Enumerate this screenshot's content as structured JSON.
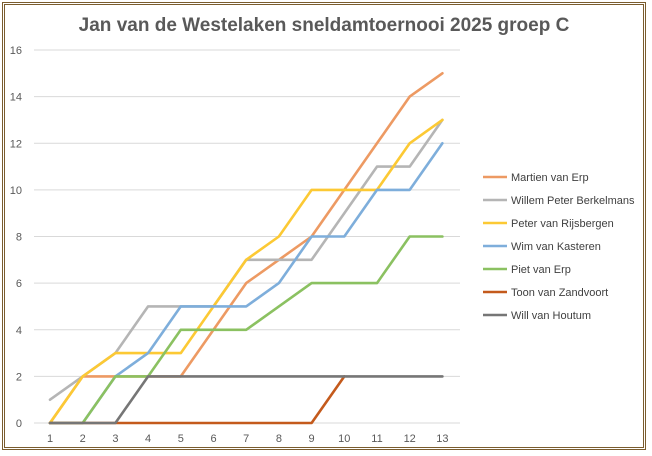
{
  "chart_data": {
    "type": "line",
    "title": "Jan van de Westelaken sneldamtoernooi 2025 groep C",
    "xlabel": "",
    "ylabel": "",
    "x": [
      1,
      2,
      3,
      4,
      5,
      6,
      7,
      8,
      9,
      10,
      11,
      12,
      13
    ],
    "ylim": [
      0,
      16
    ],
    "yticks": [
      0,
      2,
      4,
      6,
      8,
      10,
      12,
      14,
      16
    ],
    "grid": true,
    "legend_position": "right",
    "series": [
      {
        "name": "Martien van Erp",
        "color": "#ed9a63",
        "values": [
          0,
          2,
          2,
          2,
          2,
          4,
          6,
          7,
          8,
          10,
          12,
          14,
          15
        ]
      },
      {
        "name": "Willem Peter Berkelmans",
        "color": "#b5b5b5",
        "values": [
          1,
          2,
          3,
          5,
          5,
          5,
          7,
          7,
          7,
          9,
          11,
          11,
          13
        ]
      },
      {
        "name": "Peter van Rijsbergen",
        "color": "#fcc934",
        "values": [
          0,
          2,
          3,
          3,
          3,
          5,
          7,
          8,
          10,
          10,
          10,
          12,
          13
        ]
      },
      {
        "name": "Wim van Kasteren",
        "color": "#7eaedb",
        "values": [
          0,
          0,
          2,
          3,
          5,
          5,
          5,
          6,
          8,
          8,
          10,
          10,
          12
        ]
      },
      {
        "name": "Piet van Erp",
        "color": "#8bc161",
        "values": [
          0,
          0,
          2,
          2,
          4,
          4,
          4,
          5,
          6,
          6,
          6,
          8,
          8
        ]
      },
      {
        "name": "Toon van Zandvoort",
        "color": "#c45a1c",
        "values": [
          0,
          0,
          0,
          0,
          0,
          0,
          0,
          0,
          0,
          2,
          null,
          null,
          null
        ]
      },
      {
        "name": "Will van Houtum",
        "color": "#767676",
        "values": [
          0,
          0,
          0,
          2,
          2,
          2,
          2,
          2,
          2,
          2,
          2,
          2,
          2
        ]
      }
    ]
  }
}
